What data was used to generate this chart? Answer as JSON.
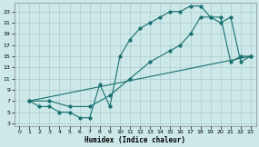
{
  "xlabel": "Humidex (Indice chaleur)",
  "bg_color": "#cce8e8",
  "grid_color": "#aacccc",
  "line_color": "#1a7070",
  "xlim": [
    -0.5,
    23.5
  ],
  "ylim": [
    2.5,
    24.5
  ],
  "xticks": [
    0,
    1,
    2,
    3,
    4,
    5,
    6,
    7,
    8,
    9,
    10,
    11,
    12,
    13,
    14,
    15,
    16,
    17,
    18,
    19,
    20,
    21,
    22,
    23
  ],
  "yticks": [
    3,
    5,
    7,
    9,
    11,
    13,
    15,
    17,
    19,
    21,
    23
  ],
  "line1_x": [
    1,
    2,
    3,
    4,
    5,
    6,
    7,
    8,
    9,
    10,
    11,
    12,
    13,
    14,
    15,
    16,
    17,
    18,
    19,
    20,
    21,
    22,
    23
  ],
  "line1_y": [
    7,
    6,
    6,
    5,
    5,
    4,
    4,
    10,
    6,
    15,
    18,
    20,
    21,
    22,
    23,
    23,
    24,
    24,
    22,
    22,
    14,
    15,
    15
  ],
  "line2_x": [
    1,
    3,
    5,
    7,
    9,
    11,
    13,
    15,
    16,
    17,
    18,
    19,
    20,
    21,
    22,
    23
  ],
  "line2_y": [
    7,
    7,
    6,
    6,
    8,
    11,
    14,
    16,
    17,
    19,
    22,
    22,
    21,
    22,
    14,
    15
  ],
  "line3_x": [
    1,
    23
  ],
  "line3_y": [
    7,
    15
  ]
}
